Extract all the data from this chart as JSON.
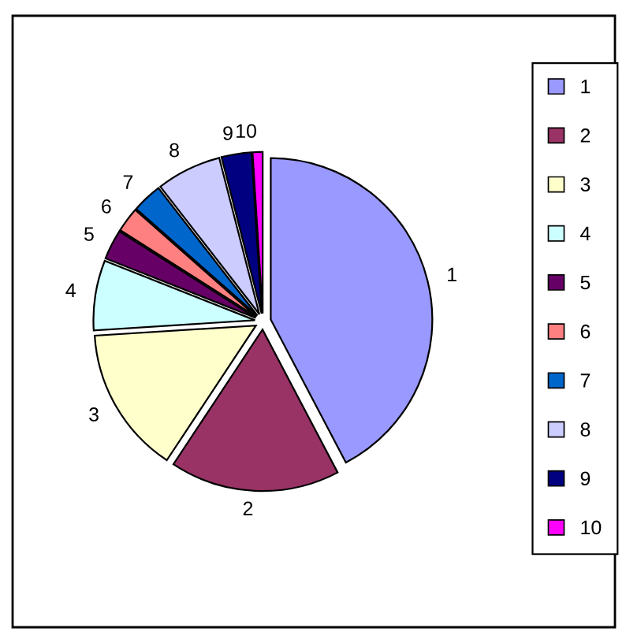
{
  "chart_data": {
    "type": "pie",
    "categories": [
      "1",
      "2",
      "3",
      "4",
      "5",
      "6",
      "7",
      "8",
      "9",
      "10"
    ],
    "values": [
      42.3,
      17,
      14.7,
      7,
      3,
      2.5,
      3,
      6.5,
      3,
      1
    ],
    "colors": [
      "#9999ff",
      "#993366",
      "#ffffcc",
      "#ccffff",
      "#660066",
      "#ff8080",
      "#0066cc",
      "#ccccff",
      "#000080",
      "#ff00ff"
    ],
    "legend": "right"
  }
}
